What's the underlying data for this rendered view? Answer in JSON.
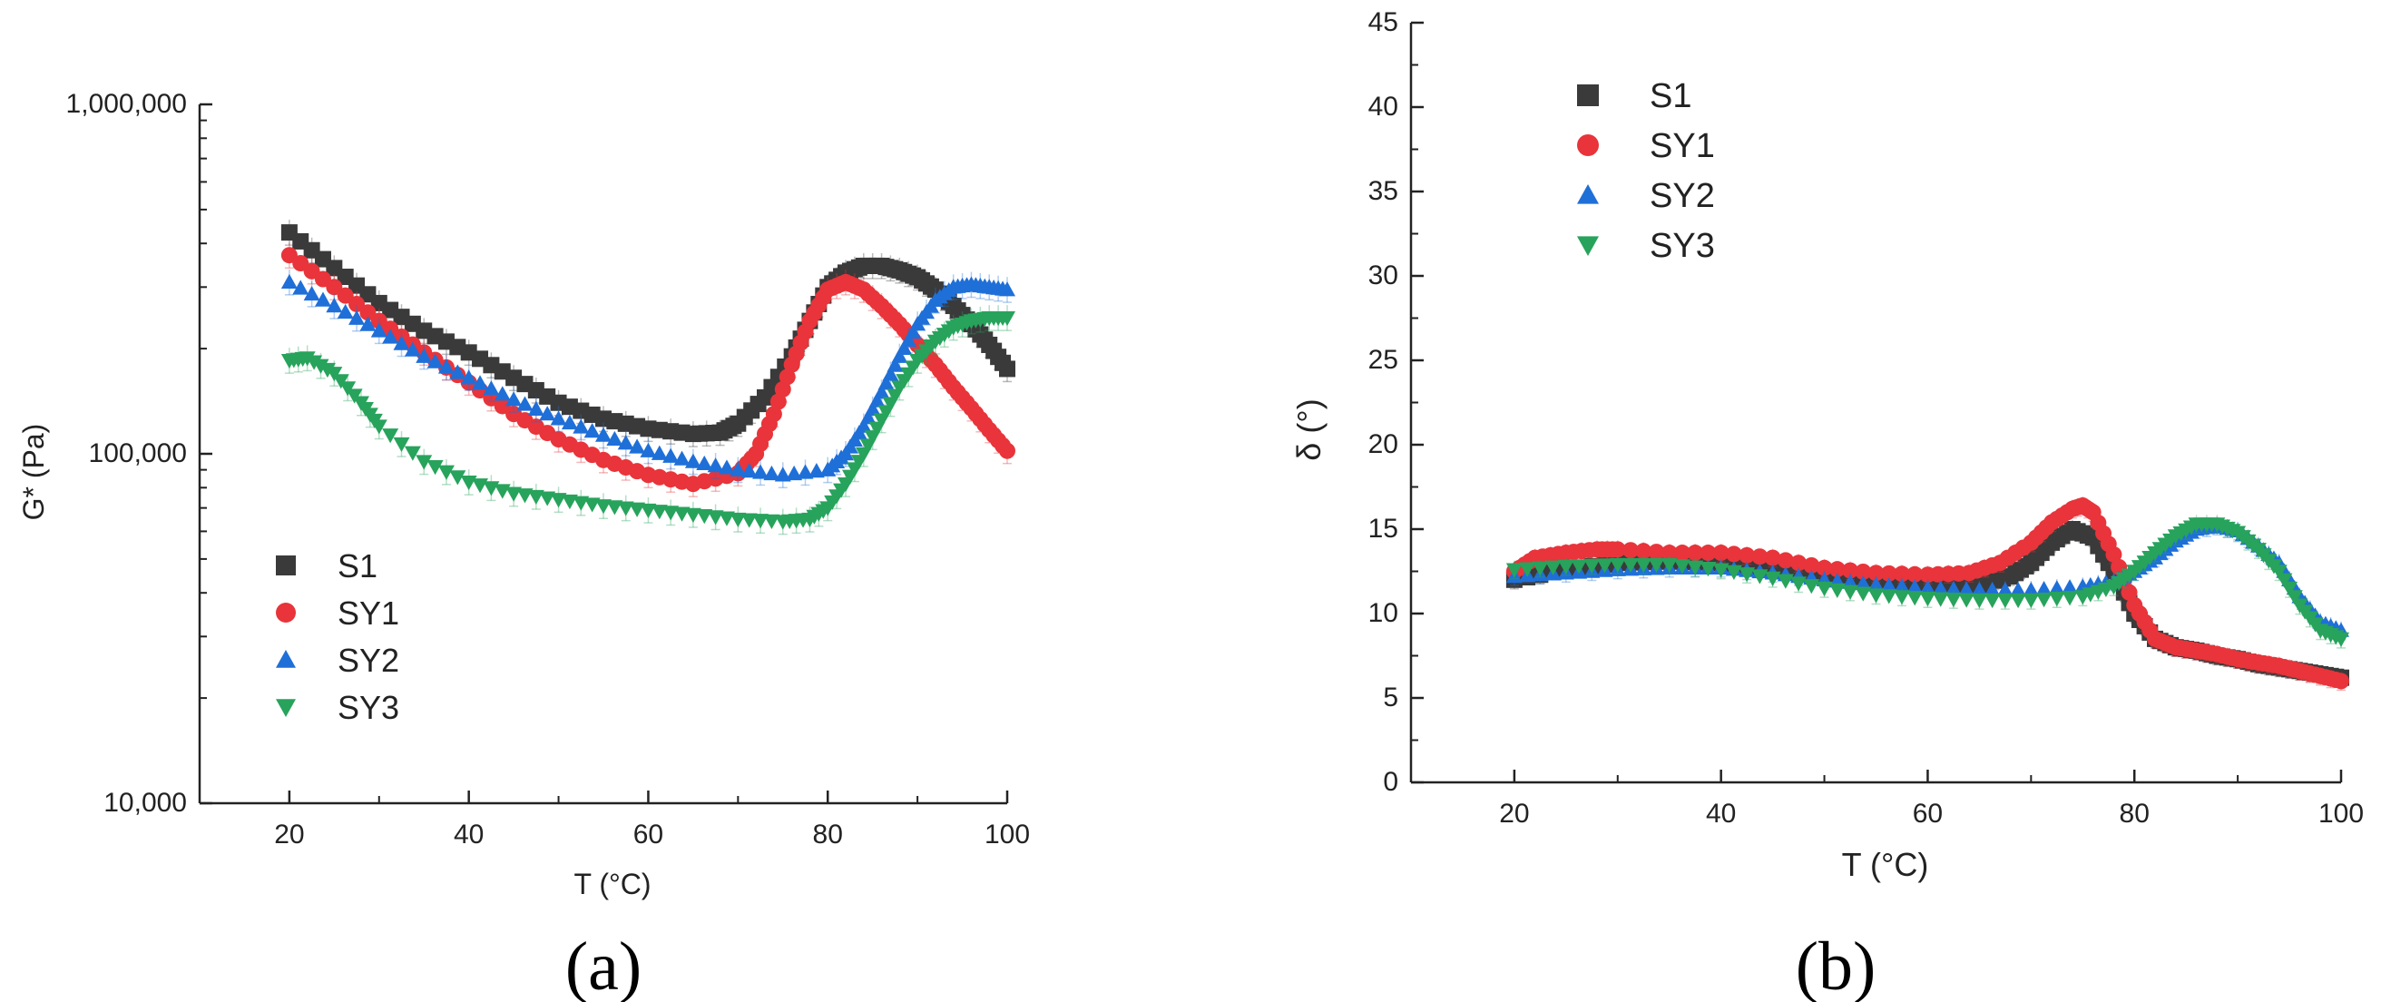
{
  "chart_data": [
    {
      "type": "scatter",
      "panel": "(a)",
      "xlabel": "T (°C)",
      "ylabel": "G* (Pa)",
      "xlim": [
        10,
        100
      ],
      "ylim": [
        10000,
        1000000
      ],
      "yscale": "log",
      "xticks": [
        20,
        40,
        60,
        80,
        100
      ],
      "xtick_labels": [
        "20",
        "40",
        "60",
        "80",
        "100"
      ],
      "yticks": [
        10000,
        100000,
        1000000
      ],
      "ytick_labels": [
        "10,000",
        "100,000",
        "1,000,000"
      ],
      "legend": {
        "position": "bottom-left"
      },
      "series": [
        {
          "name": "S1",
          "marker": "square",
          "color": "#3a3a3a",
          "x": [
            20,
            25,
            30,
            35,
            40,
            45,
            50,
            55,
            60,
            65,
            68,
            70,
            73,
            76,
            78,
            80,
            82,
            84,
            86,
            88,
            90,
            92,
            94,
            96,
            98,
            100
          ],
          "y": [
            430000,
            340000,
            270000,
            225000,
            195000,
            165000,
            140000,
            126000,
            118000,
            114000,
            115000,
            122000,
            145000,
            190000,
            240000,
            300000,
            330000,
            345000,
            345000,
            335000,
            320000,
            295000,
            265000,
            235000,
            205000,
            175000
          ]
        },
        {
          "name": "SY1",
          "marker": "circle",
          "color": "#e8343a",
          "x": [
            20,
            25,
            30,
            35,
            40,
            45,
            50,
            55,
            60,
            65,
            70,
            72,
            74,
            76,
            78,
            80,
            82,
            84,
            86,
            88,
            90,
            92,
            94,
            96,
            98,
            100
          ],
          "y": [
            370000,
            300000,
            240000,
            195000,
            160000,
            130000,
            110000,
            96000,
            87000,
            82000,
            88000,
            100000,
            130000,
            180000,
            240000,
            295000,
            310000,
            295000,
            265000,
            235000,
            205000,
            180000,
            155000,
            135000,
            117000,
            102000
          ]
        },
        {
          "name": "SY2",
          "marker": "triangle-up",
          "color": "#1f6fd8",
          "x": [
            20,
            25,
            30,
            35,
            40,
            45,
            50,
            55,
            60,
            65,
            70,
            75,
            80,
            82,
            84,
            86,
            88,
            90,
            92,
            94,
            96,
            98,
            100
          ],
          "y": [
            310000,
            265000,
            225000,
            190000,
            165000,
            143000,
            126000,
            113000,
            102000,
            95000,
            90000,
            87000,
            90000,
            100000,
            120000,
            150000,
            190000,
            235000,
            275000,
            300000,
            305000,
            300000,
            295000
          ]
        },
        {
          "name": "SY3",
          "marker": "triangle-down",
          "color": "#27a35c",
          "x": [
            20,
            22,
            25,
            28,
            30,
            35,
            40,
            45,
            50,
            55,
            60,
            65,
            70,
            75,
            78,
            80,
            82,
            84,
            86,
            88,
            90,
            92,
            94,
            96,
            98,
            100
          ],
          "y": [
            185000,
            188000,
            170000,
            140000,
            120000,
            95000,
            83000,
            77000,
            74000,
            71000,
            69000,
            67000,
            65000,
            64000,
            65000,
            70000,
            82000,
            100000,
            125000,
            155000,
            185000,
            210000,
            230000,
            240000,
            245000,
            245000
          ]
        }
      ]
    },
    {
      "type": "scatter",
      "panel": "(b)",
      "xlabel": "T (°C)",
      "ylabel": "δ (°)",
      "xlim": [
        10,
        100
      ],
      "ylim": [
        0,
        45
      ],
      "yscale": "linear",
      "xticks": [
        20,
        40,
        60,
        80,
        100
      ],
      "xtick_labels": [
        "20",
        "40",
        "60",
        "80",
        "100"
      ],
      "yticks": [
        0,
        5,
        10,
        15,
        20,
        25,
        30,
        35,
        40,
        45
      ],
      "ytick_labels": [
        "0",
        "5",
        "10",
        "15",
        "20",
        "25",
        "30",
        "35",
        "40",
        "45"
      ],
      "legend": {
        "position": "top-left"
      },
      "series": [
        {
          "name": "S1",
          "marker": "square",
          "color": "#3a3a3a",
          "x": [
            20,
            25,
            30,
            35,
            40,
            45,
            50,
            55,
            60,
            65,
            68,
            70,
            72,
            74,
            76,
            78,
            80,
            82,
            84,
            86,
            88,
            90,
            92,
            94,
            96,
            98,
            100
          ],
          "y": [
            12.0,
            12.6,
            13.0,
            13.1,
            13.0,
            12.7,
            12.2,
            11.8,
            11.6,
            11.7,
            12.2,
            13.0,
            14.2,
            15.0,
            14.5,
            12.5,
            10.0,
            8.5,
            8.0,
            7.8,
            7.5,
            7.3,
            7.0,
            6.8,
            6.6,
            6.4,
            6.2
          ]
        },
        {
          "name": "SY1",
          "marker": "circle",
          "color": "#e8343a",
          "x": [
            20,
            22,
            25,
            28,
            30,
            35,
            40,
            45,
            50,
            55,
            60,
            64,
            67,
            70,
            72,
            74,
            75,
            76,
            78,
            80,
            82,
            84,
            86,
            88,
            90,
            92,
            94,
            96,
            98,
            100
          ],
          "y": [
            12.5,
            13.3,
            13.6,
            13.8,
            13.8,
            13.6,
            13.6,
            13.3,
            12.7,
            12.4,
            12.3,
            12.4,
            13.0,
            14.2,
            15.4,
            16.2,
            16.4,
            16.0,
            13.5,
            10.5,
            8.5,
            8.0,
            7.8,
            7.6,
            7.3,
            7.1,
            6.9,
            6.6,
            6.3,
            6.0
          ]
        },
        {
          "name": "SY2",
          "marker": "triangle-up",
          "color": "#1f6fd8",
          "x": [
            20,
            25,
            30,
            35,
            40,
            45,
            50,
            55,
            60,
            65,
            70,
            75,
            78,
            80,
            82,
            84,
            86,
            88,
            90,
            92,
            94,
            96,
            98,
            100
          ],
          "y": [
            12.2,
            12.4,
            12.6,
            12.7,
            12.7,
            12.4,
            12.0,
            11.7,
            11.5,
            11.4,
            11.4,
            11.6,
            11.9,
            12.5,
            13.3,
            14.3,
            15.0,
            15.2,
            14.9,
            14.0,
            13.0,
            11.0,
            9.5,
            9.0
          ]
        },
        {
          "name": "SY3",
          "marker": "triangle-down",
          "color": "#27a35c",
          "x": [
            20,
            25,
            30,
            35,
            40,
            45,
            50,
            55,
            60,
            65,
            70,
            75,
            78,
            80,
            82,
            84,
            86,
            88,
            90,
            92,
            94,
            96,
            98,
            100
          ],
          "y": [
            12.6,
            12.8,
            12.9,
            12.9,
            12.6,
            12.1,
            11.5,
            11.1,
            10.9,
            10.8,
            10.8,
            11.0,
            11.6,
            12.5,
            13.6,
            14.6,
            15.3,
            15.3,
            14.8,
            13.8,
            12.5,
            10.5,
            9.0,
            8.5
          ]
        }
      ]
    }
  ]
}
